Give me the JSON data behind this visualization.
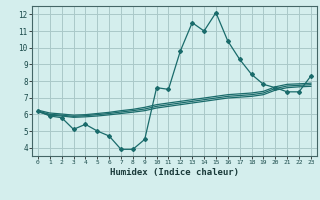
{
  "title": "",
  "xlabel": "Humidex (Indice chaleur)",
  "xlim": [
    -0.5,
    23.5
  ],
  "ylim": [
    3.5,
    12.5
  ],
  "xticks": [
    0,
    1,
    2,
    3,
    4,
    5,
    6,
    7,
    8,
    9,
    10,
    11,
    12,
    13,
    14,
    15,
    16,
    17,
    18,
    19,
    20,
    21,
    22,
    23
  ],
  "yticks": [
    4,
    5,
    6,
    7,
    8,
    9,
    10,
    11,
    12
  ],
  "background_color": "#d4eeed",
  "grid_color": "#aac8c8",
  "line_color": "#1a6b6b",
  "line1_x": [
    0,
    1,
    2,
    3,
    4,
    5,
    6,
    7,
    8,
    9,
    10,
    11,
    12,
    13,
    14,
    15,
    16,
    17,
    18,
    19,
    20,
    21,
    22,
    23
  ],
  "line1_y": [
    6.2,
    5.9,
    5.8,
    5.1,
    5.4,
    5.0,
    4.7,
    3.9,
    3.9,
    4.5,
    7.6,
    7.5,
    9.8,
    11.5,
    11.0,
    12.1,
    10.4,
    9.3,
    8.4,
    7.8,
    7.6,
    7.35,
    7.35,
    8.3
  ],
  "line2_x": [
    0,
    1,
    2,
    3,
    4,
    5,
    6,
    7,
    8,
    9,
    10,
    11,
    12,
    13,
    14,
    15,
    16,
    17,
    18,
    19,
    20,
    21,
    22,
    23
  ],
  "line2_y": [
    6.15,
    5.95,
    5.9,
    5.82,
    5.85,
    5.9,
    5.97,
    6.05,
    6.13,
    6.22,
    6.38,
    6.48,
    6.58,
    6.68,
    6.78,
    6.88,
    6.98,
    7.03,
    7.08,
    7.18,
    7.45,
    7.6,
    7.65,
    7.68
  ],
  "line3_x": [
    0,
    1,
    2,
    3,
    4,
    5,
    6,
    7,
    8,
    9,
    10,
    11,
    12,
    13,
    14,
    15,
    16,
    17,
    18,
    19,
    20,
    21,
    22,
    23
  ],
  "line3_y": [
    6.2,
    6.0,
    5.95,
    5.88,
    5.92,
    5.98,
    6.05,
    6.14,
    6.22,
    6.32,
    6.48,
    6.58,
    6.68,
    6.78,
    6.88,
    6.98,
    7.08,
    7.13,
    7.18,
    7.28,
    7.55,
    7.7,
    7.74,
    7.78
  ],
  "line4_x": [
    0,
    1,
    2,
    3,
    4,
    5,
    6,
    7,
    8,
    9,
    10,
    11,
    12,
    13,
    14,
    15,
    16,
    17,
    18,
    19,
    20,
    21,
    22,
    23
  ],
  "line4_y": [
    6.25,
    6.08,
    6.02,
    5.95,
    5.98,
    6.05,
    6.12,
    6.22,
    6.3,
    6.42,
    6.58,
    6.68,
    6.78,
    6.88,
    6.98,
    7.08,
    7.18,
    7.23,
    7.28,
    7.38,
    7.65,
    7.8,
    7.83,
    7.87
  ]
}
